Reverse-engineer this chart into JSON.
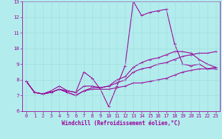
{
  "xlabel": "Windchill (Refroidissement éolien,°C)",
  "bg_color": "#b3ecec",
  "grid_color": "#ccffff",
  "line_color": "#990099",
  "xlim": [
    -0.5,
    23.5
  ],
  "ylim": [
    6,
    13
  ],
  "xticks": [
    0,
    1,
    2,
    3,
    4,
    5,
    6,
    7,
    8,
    9,
    10,
    11,
    12,
    13,
    14,
    15,
    16,
    17,
    18,
    19,
    20,
    21,
    22,
    23
  ],
  "yticks": [
    6,
    7,
    8,
    9,
    10,
    11,
    12,
    13
  ],
  "line1_x": [
    0,
    1,
    2,
    3,
    4,
    5,
    6,
    7,
    8,
    9,
    10,
    11,
    12,
    13,
    14,
    15,
    16,
    17,
    18,
    19,
    20,
    21,
    22,
    23
  ],
  "line1_y": [
    7.9,
    7.2,
    7.1,
    7.3,
    7.6,
    7.3,
    7.2,
    8.5,
    8.1,
    7.4,
    6.3,
    7.6,
    8.9,
    13.0,
    12.1,
    12.3,
    12.4,
    12.5,
    10.3,
    9.0,
    8.9,
    9.0,
    8.7,
    8.7
  ],
  "line2_x": [
    0,
    1,
    2,
    3,
    4,
    5,
    6,
    7,
    8,
    9,
    10,
    11,
    12,
    13,
    14,
    15,
    16,
    17,
    18,
    19,
    20,
    21,
    22,
    23
  ],
  "line2_y": [
    7.9,
    7.2,
    7.1,
    7.2,
    7.4,
    7.3,
    7.2,
    7.6,
    7.6,
    7.5,
    7.6,
    7.8,
    8.0,
    8.5,
    8.7,
    8.8,
    9.0,
    9.1,
    9.3,
    9.5,
    9.6,
    9.7,
    9.7,
    9.8
  ],
  "line3_x": [
    0,
    1,
    2,
    3,
    4,
    5,
    6,
    7,
    8,
    9,
    10,
    11,
    12,
    13,
    14,
    15,
    16,
    17,
    18,
    19,
    20,
    21,
    22,
    23
  ],
  "line3_y": [
    7.9,
    7.2,
    7.1,
    7.2,
    7.4,
    7.2,
    7.0,
    7.3,
    7.4,
    7.4,
    7.4,
    7.5,
    7.6,
    7.8,
    7.8,
    7.9,
    8.0,
    8.1,
    8.3,
    8.5,
    8.6,
    8.7,
    8.7,
    8.8
  ],
  "line4_x": [
    0,
    1,
    2,
    3,
    4,
    5,
    6,
    7,
    8,
    9,
    10,
    11,
    12,
    13,
    14,
    15,
    16,
    17,
    18,
    19,
    20,
    21,
    22,
    23
  ],
  "line4_y": [
    7.9,
    7.2,
    7.1,
    7.2,
    7.4,
    7.2,
    7.0,
    7.3,
    7.5,
    7.5,
    7.6,
    8.0,
    8.2,
    8.8,
    9.1,
    9.3,
    9.4,
    9.6,
    9.8,
    9.8,
    9.7,
    9.3,
    9.0,
    8.8
  ],
  "marker": "+",
  "markersize": 3,
  "linewidth": 0.8,
  "tick_fontsize": 5,
  "xlabel_fontsize": 5.5
}
